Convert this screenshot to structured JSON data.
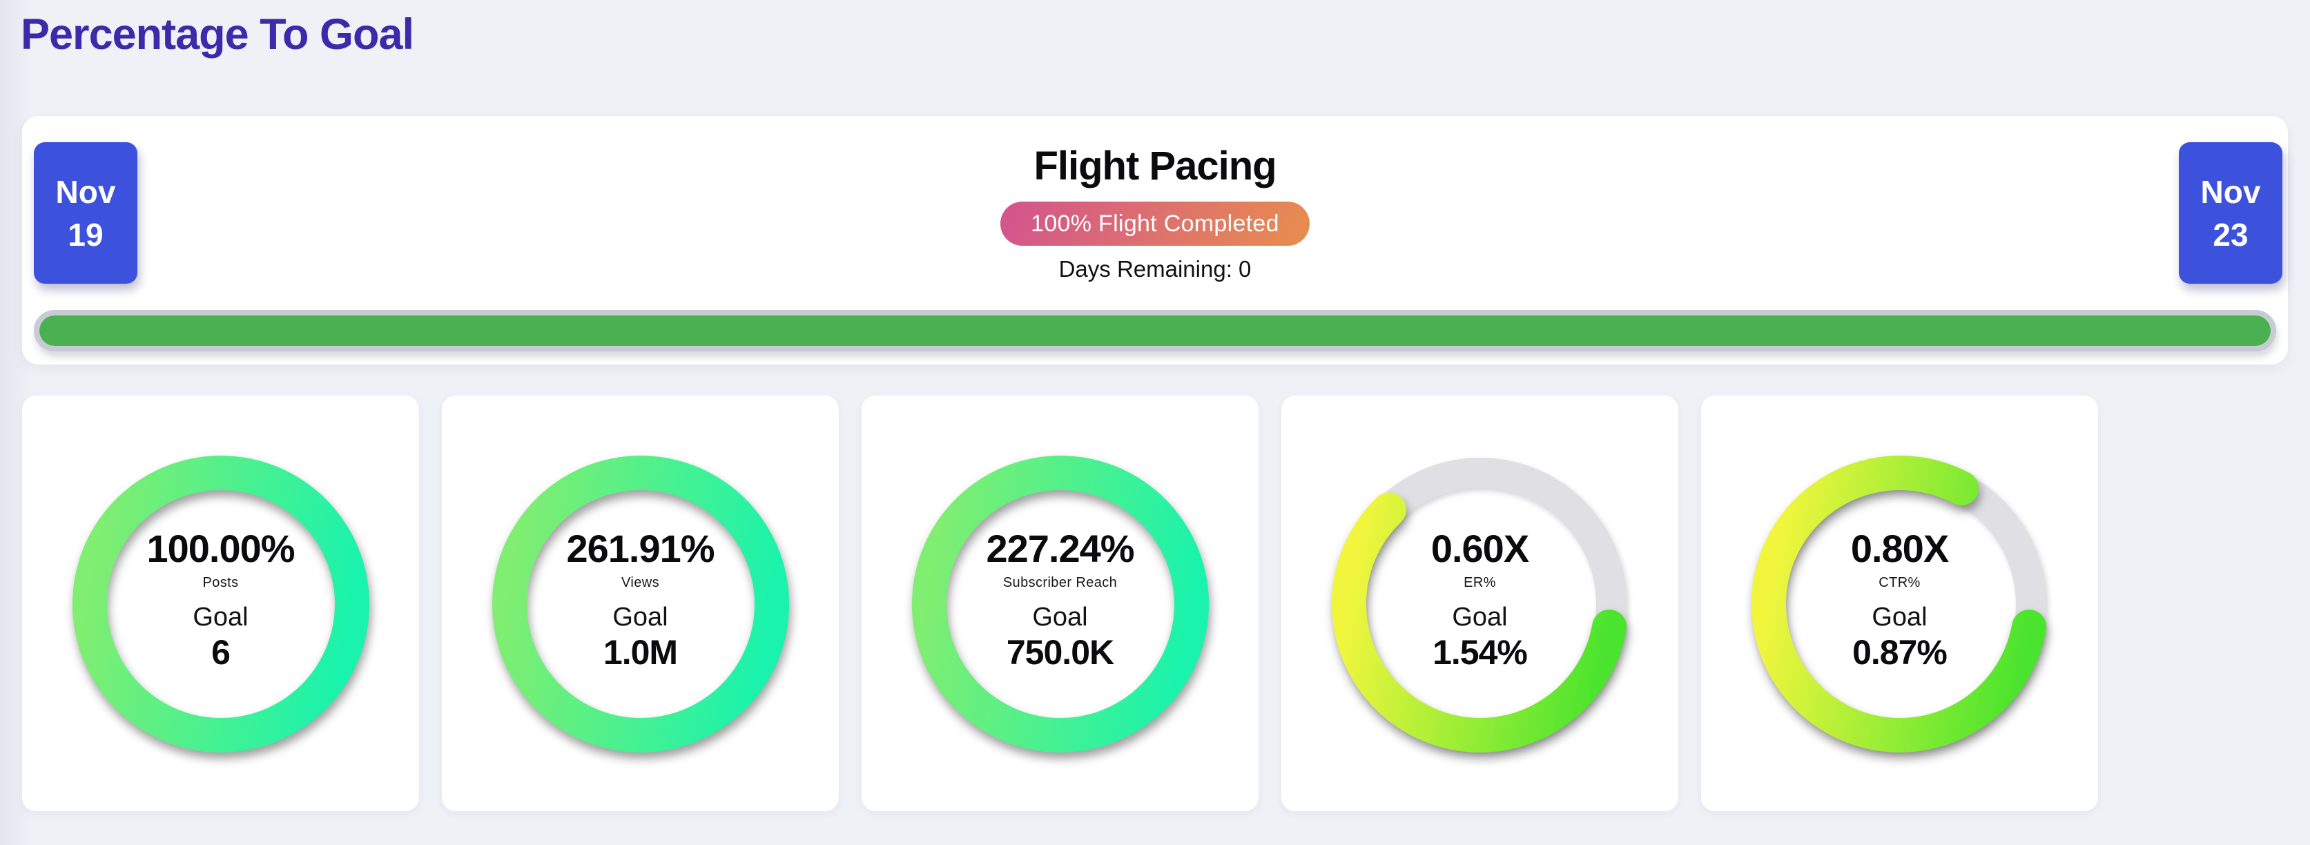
{
  "page": {
    "title": "Percentage To Goal"
  },
  "flight_pacing": {
    "title": "Flight Pacing",
    "completed_badge": "100% Flight Completed",
    "days_remaining": "Days Remaining: 0",
    "progress_percent": 100,
    "start_month": "Nov",
    "start_day": "19",
    "end_month": "Nov",
    "end_day": "23"
  },
  "gauges": [
    {
      "value": "100.00%",
      "metric": "Posts",
      "goal_label": "Goal",
      "goal": "6",
      "percent": 100,
      "ring": "mint"
    },
    {
      "value": "261.91%",
      "metric": "Views",
      "goal_label": "Goal",
      "goal": "1.0M",
      "percent": 100,
      "ring": "mint"
    },
    {
      "value": "227.24%",
      "metric": "Subscriber Reach",
      "goal_label": "Goal",
      "goal": "750.0K",
      "percent": 100,
      "ring": "mint"
    },
    {
      "value": "0.60X",
      "metric": "ER%",
      "goal_label": "Goal",
      "goal": "1.54%",
      "percent": 60,
      "ring": "lime"
    },
    {
      "value": "0.80X",
      "metric": "CTR%",
      "goal_label": "Goal",
      "goal": "0.87%",
      "percent": 80,
      "ring": "lime"
    }
  ],
  "colors": {
    "title": "#3b2aa9",
    "date_badge": "#3d52dc",
    "pill_gradient": [
      "#d2538f",
      "#e88e4d"
    ],
    "progress_fill": "#4bb052",
    "progress_border": "#c7cbd4",
    "ring_track": "#dfdfe4",
    "ring_mint": [
      "#7fee71",
      "#19f3ac"
    ],
    "ring_lime": [
      "#f1f63d",
      "#4ae42e"
    ]
  },
  "chart_data": {
    "type": "gauge",
    "title": "Percentage To Goal",
    "flight": {
      "start": "Nov 19",
      "end": "Nov 23",
      "completed_percent": 100,
      "days_remaining": 0
    },
    "gauges": [
      {
        "metric": "Posts",
        "value_display": "100.00%",
        "goal": "6",
        "ring_fill_percent": 100
      },
      {
        "metric": "Views",
        "value_display": "261.91%",
        "goal": "1.0M",
        "ring_fill_percent": 100
      },
      {
        "metric": "Subscriber Reach",
        "value_display": "227.24%",
        "goal": "750.0K",
        "ring_fill_percent": 100
      },
      {
        "metric": "ER%",
        "value_display": "0.60X",
        "goal": "1.54%",
        "ring_fill_percent": 60
      },
      {
        "metric": "CTR%",
        "value_display": "0.80X",
        "goal": "0.87%",
        "ring_fill_percent": 80
      }
    ]
  }
}
